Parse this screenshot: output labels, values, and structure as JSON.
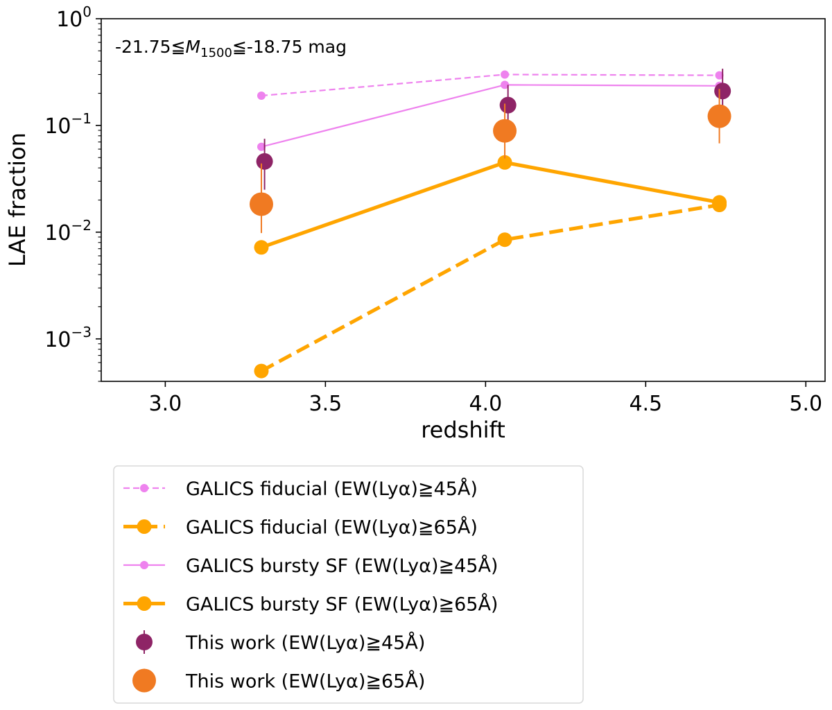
{
  "chart_data": {
    "type": "line",
    "xlabel": "redshift",
    "ylabel": "LAE fraction",
    "xlim": [
      2.8,
      5.06
    ],
    "ylim": [
      0.0004,
      1.0
    ],
    "yscale": "log",
    "xticks": [
      "3.0",
      "3.5",
      "4.0",
      "4.5",
      "5.0"
    ],
    "yticks": [
      {
        "value": 0.001,
        "base": "10",
        "exp": "−3"
      },
      {
        "value": 0.01,
        "base": "10",
        "exp": "−2"
      },
      {
        "value": 0.1,
        "base": "10",
        "exp": "−1"
      },
      {
        "value": 1.0,
        "base": "10",
        "exp": "0"
      }
    ],
    "annotation": {
      "pre": "-21.75≦",
      "italic": "M",
      "sub": "1500",
      "post": "≦-18.75 mag"
    },
    "grid": false,
    "legend_position": "below",
    "series": [
      {
        "name": "GALICS fiducial (EW(Lyα)≧45Å)",
        "kind": "line",
        "style": "dashed",
        "weight": "thin",
        "color": "#ee82ee",
        "x": [
          3.3,
          4.06,
          4.73
        ],
        "y": [
          0.19,
          0.3,
          0.295
        ]
      },
      {
        "name": "GALICS fiducial (EW(Lyα)≧65Å)",
        "kind": "line",
        "style": "dashed",
        "weight": "thick",
        "color": "#ffa500",
        "x": [
          3.3,
          4.06,
          4.73
        ],
        "y": [
          0.0005,
          0.0085,
          0.018
        ]
      },
      {
        "name": "GALICS bursty SF (EW(Lyα)≧45Å)",
        "kind": "line",
        "style": "solid",
        "weight": "thin",
        "color": "#ee82ee",
        "x": [
          3.3,
          4.06,
          4.73
        ],
        "y": [
          0.063,
          0.24,
          0.235
        ]
      },
      {
        "name": "GALICS bursty SF (EW(Lyα)≧65Å)",
        "kind": "line",
        "style": "solid",
        "weight": "thick",
        "color": "#ffa500",
        "x": [
          3.3,
          4.06,
          4.73
        ],
        "y": [
          0.0072,
          0.045,
          0.019
        ]
      },
      {
        "name": "This work (EW(Lyα)≧45Å)",
        "kind": "errorbar",
        "size": "medium",
        "color": "#8e2466",
        "x": [
          3.31,
          4.07,
          4.74
        ],
        "y": [
          0.046,
          0.155,
          0.21
        ],
        "yerr_low": [
          0.025,
          0.09,
          0.12
        ],
        "yerr_high": [
          0.075,
          0.24,
          0.34
        ]
      },
      {
        "name": "This work (EW(Lyα)≧65Å)",
        "kind": "errorbar",
        "size": "large",
        "color": "#f07a22",
        "x": [
          3.3,
          4.06,
          4.73
        ],
        "y": [
          0.0183,
          0.089,
          0.122
        ],
        "yerr_low": [
          0.0098,
          0.049,
          0.068
        ],
        "yerr_high": [
          0.044,
          0.16,
          0.22
        ]
      }
    ]
  }
}
